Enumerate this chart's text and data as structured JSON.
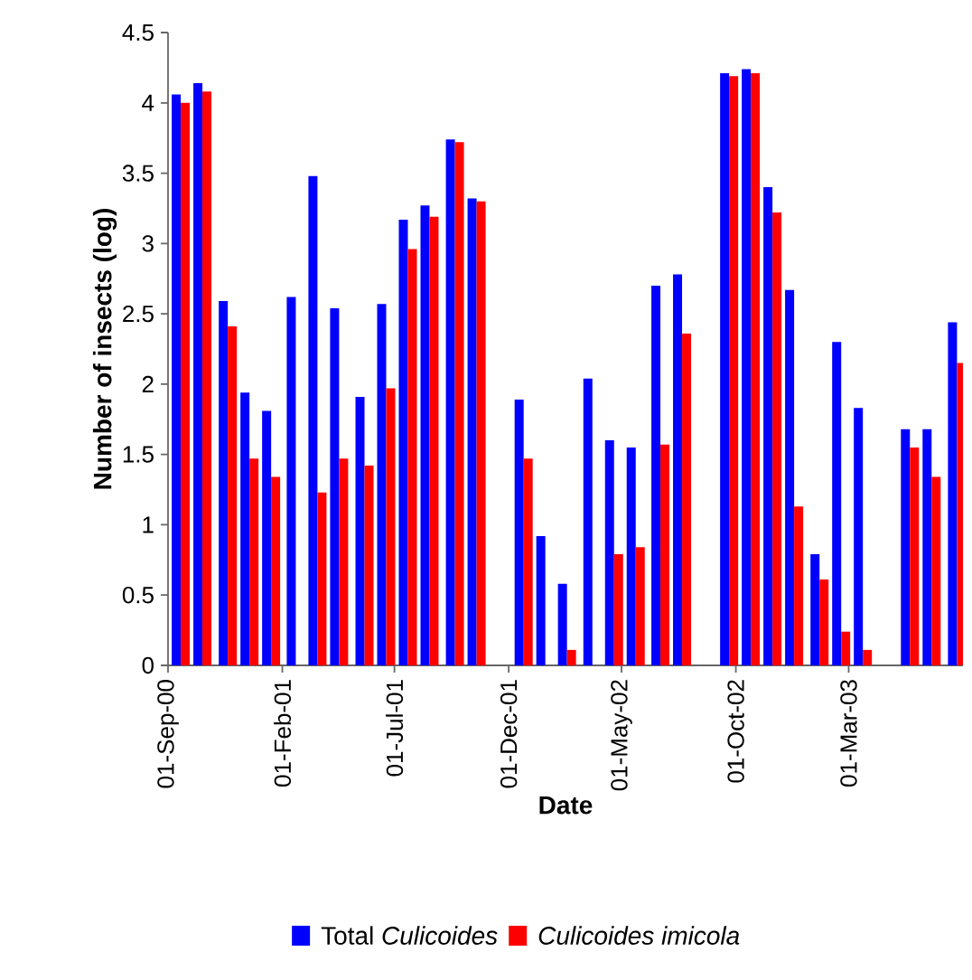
{
  "chart_data": {
    "type": "bar",
    "xlabel": "Date",
    "ylabel": "Number of insects (log)",
    "x": [
      "2000-09-18",
      "2000-10-17",
      "2000-11-20",
      "2000-12-19",
      "2001-01-17",
      "2001-02-19",
      "2001-03-20",
      "2001-04-18",
      "2001-05-22",
      "2001-06-20",
      "2001-07-19",
      "2001-08-17",
      "2001-09-20",
      "2001-10-19",
      "2001-12-21",
      "2002-01-19",
      "2002-02-17",
      "2002-03-23",
      "2002-04-21",
      "2002-05-20",
      "2002-06-22",
      "2002-07-21",
      "2002-09-22",
      "2002-10-21",
      "2002-11-19",
      "2002-12-18",
      "2003-01-21",
      "2003-02-19",
      "2003-03-20",
      "2003-05-22",
      "2003-06-20",
      "2003-07-24"
    ],
    "series": [
      {
        "name": "Total *Culicoides*",
        "color": "#0000ff",
        "values": [
          4.06,
          4.14,
          2.59,
          1.94,
          1.81,
          2.62,
          3.48,
          2.54,
          1.91,
          2.57,
          3.17,
          3.27,
          3.74,
          3.32,
          1.89,
          0.92,
          0.58,
          2.04,
          1.6,
          1.55,
          2.7,
          2.78,
          4.21,
          4.24,
          3.4,
          2.67,
          0.79,
          2.3,
          1.83,
          1.68,
          1.68,
          2.44
        ]
      },
      {
        "name": "Culicoides imicola",
        "color": "#ff0000",
        "values": [
          4.0,
          4.08,
          2.41,
          1.47,
          1.34,
          0,
          1.23,
          1.47,
          1.42,
          1.97,
          2.96,
          3.19,
          3.72,
          3.3,
          1.47,
          0,
          0.11,
          0,
          0.79,
          0.84,
          1.57,
          2.36,
          4.19,
          4.21,
          3.22,
          1.13,
          0.61,
          0.24,
          0.11,
          1.55,
          1.34,
          2.15
        ]
      }
    ],
    "xlim": [
      "2000-09-01",
      "2003-08-01"
    ],
    "xticks": [
      {
        "value": "2000-09-01",
        "label": "01-Sep-00"
      },
      {
        "value": "2001-02-01",
        "label": "01-Feb-01"
      },
      {
        "value": "2001-07-01",
        "label": "01-Jul-01"
      },
      {
        "value": "2001-12-01",
        "label": "01-Dec-01"
      },
      {
        "value": "2002-05-01",
        "label": "01-May-02"
      },
      {
        "value": "2002-10-01",
        "label": "01-Oct-02"
      },
      {
        "value": "2003-03-01",
        "label": "01-Mar-03"
      }
    ],
    "ylim": [
      0,
      4.5
    ],
    "yticks": [
      0,
      0.5,
      1,
      1.5,
      2,
      2.5,
      3,
      3.5,
      4,
      4.5
    ],
    "grid": false,
    "legend": "bottom"
  }
}
